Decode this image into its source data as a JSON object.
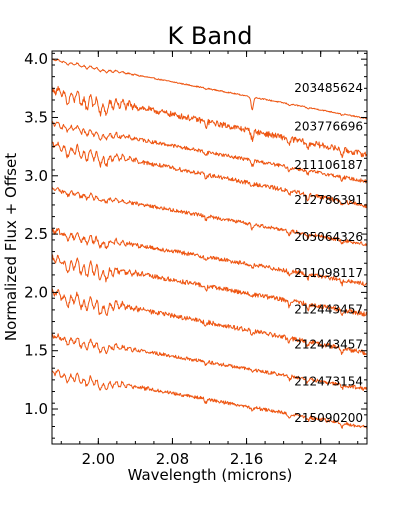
{
  "chart_data": {
    "type": "line",
    "title": "K Band",
    "xlabel": "Wavelength (microns)",
    "ylabel": "Normalized Flux + Offset",
    "xlim": [
      1.95,
      2.29
    ],
    "ylim": [
      0.7,
      4.07
    ],
    "xticks": [
      {
        "value": 2.0,
        "label": "2.00"
      },
      {
        "value": 2.08,
        "label": "2.08"
      },
      {
        "value": 2.16,
        "label": "2.16"
      },
      {
        "value": 2.24,
        "label": "2.24"
      }
    ],
    "yticks": [
      {
        "value": 1.0,
        "label": "1.0"
      },
      {
        "value": 1.5,
        "label": "1.5"
      },
      {
        "value": 2.0,
        "label": "2.0"
      },
      {
        "value": 2.5,
        "label": "2.5"
      },
      {
        "value": 3.0,
        "label": "3.0"
      },
      {
        "value": 3.5,
        "label": "3.5"
      },
      {
        "value": 4.0,
        "label": "4.0"
      }
    ],
    "color": "#ee5511",
    "series": [
      {
        "name": "203485624",
        "start": 4.0,
        "end": 3.49,
        "brgamma_depth": 0.11,
        "noise": 0.005,
        "co2": 0.02,
        "label_y": 3.72
      },
      {
        "name": "203776696",
        "start": 3.74,
        "end": 3.18,
        "brgamma_depth": 0.07,
        "noise": 0.025,
        "co2": 0.09,
        "label_y": 3.39
      },
      {
        "name": "211106187",
        "start": 3.45,
        "end": 2.95,
        "brgamma_depth": 0.05,
        "noise": 0.015,
        "co2": 0.04,
        "label_y": 3.06
      },
      {
        "name": "212786391",
        "start": 3.27,
        "end": 2.74,
        "brgamma_depth": 0.03,
        "noise": 0.018,
        "co2": 0.07,
        "label_y": 2.76
      },
      {
        "name": "205064326",
        "start": 2.89,
        "end": 2.41,
        "brgamma_depth": 0.04,
        "noise": 0.015,
        "co2": 0.03,
        "label_y": 2.44
      },
      {
        "name": "211098117",
        "start": 2.53,
        "end": 2.07,
        "brgamma_depth": 0.03,
        "noise": 0.018,
        "co2": 0.05,
        "label_y": 2.13
      },
      {
        "name": "212443457",
        "start": 2.29,
        "end": 1.81,
        "brgamma_depth": 0.03,
        "noise": 0.02,
        "co2": 0.08,
        "label_y": 1.82
      },
      {
        "name": "212443457",
        "start": 2.0,
        "end": 1.48,
        "brgamma_depth": 0.03,
        "noise": 0.02,
        "co2": 0.08,
        "label_y": 1.52
      },
      {
        "name": "212473154",
        "start": 1.63,
        "end": 1.17,
        "brgamma_depth": 0.02,
        "noise": 0.015,
        "co2": 0.05,
        "label_y": 1.2
      },
      {
        "name": "215090200",
        "start": 1.32,
        "end": 0.84,
        "brgamma_depth": 0.02,
        "noise": 0.015,
        "co2": 0.06,
        "label_y": 0.89
      }
    ]
  }
}
